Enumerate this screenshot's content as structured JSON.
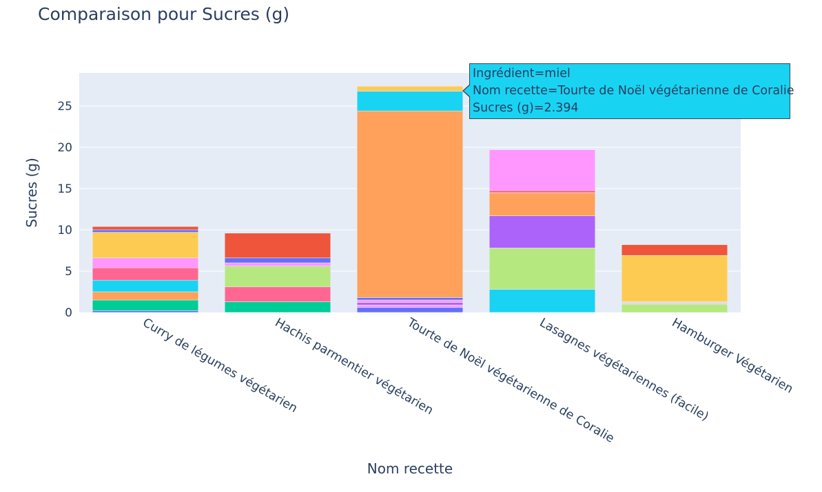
{
  "title": "Comparaison pour Sucres (g)",
  "tooltip": {
    "line1": "Ingrédient=miel",
    "line2": "Nom recette=Tourte de Noël végétarienne de Coralie",
    "line3": "Sucres (g)=2.394",
    "color": "#19d3f3"
  },
  "chart_data": {
    "type": "bar",
    "stacked": true,
    "title": "Comparaison pour Sucres (g)",
    "xlabel": "Nom recette",
    "ylabel": "Sucres (g)",
    "ylim": [
      0,
      29
    ],
    "yticks": [
      0,
      5,
      10,
      15,
      20,
      25
    ],
    "grid": true,
    "categories": [
      "Curry de légumes végétarien",
      "Hachis parmentier végétarien",
      "Tourte de Noël végétarienne de Coralie",
      "Lasagnes végétariennes (facile)",
      "Hamburger Végétarien"
    ],
    "bars": [
      [
        {
          "value": 0.2,
          "color": "#636efa"
        },
        {
          "value": 1.3,
          "color": "#00cc96"
        },
        {
          "value": 1.0,
          "color": "#ffa15a"
        },
        {
          "value": 1.4,
          "color": "#19d3f3"
        },
        {
          "value": 1.5,
          "color": "#ff6692"
        },
        {
          "value": 1.2,
          "color": "#ff97ff"
        },
        {
          "value": 3.1,
          "color": "#fecb52"
        },
        {
          "value": 0.3,
          "color": "#636efa"
        },
        {
          "value": 0.4,
          "color": "#ef553b"
        }
      ],
      [
        {
          "value": 1.3,
          "color": "#00cc96"
        },
        {
          "value": 1.8,
          "color": "#ff6692"
        },
        {
          "value": 2.5,
          "color": "#b6e880"
        },
        {
          "value": 0.4,
          "color": "#ff97ff"
        },
        {
          "value": 0.6,
          "color": "#636efa"
        },
        {
          "value": 3.0,
          "color": "#ef553b"
        }
      ],
      [
        {
          "value": 0.6,
          "color": "#636efa"
        },
        {
          "value": 0.3,
          "color": "#ff97ff"
        },
        {
          "value": 0.3,
          "color": "#ab63fa"
        },
        {
          "value": 0.3,
          "color": "#ff97ff"
        },
        {
          "value": 0.3,
          "color": "#636efa"
        },
        {
          "value": 22.6,
          "color": "#ffa15a"
        },
        {
          "value": 2.394,
          "color": "#19d3f3"
        },
        {
          "value": 0.6,
          "color": "#fecb52"
        }
      ],
      [
        {
          "value": 2.8,
          "color": "#19d3f3"
        },
        {
          "value": 5.0,
          "color": "#b6e880"
        },
        {
          "value": 3.9,
          "color": "#ab63fa"
        },
        {
          "value": 2.8,
          "color": "#ffa15a"
        },
        {
          "value": 0.3,
          "color": "#ff6692"
        },
        {
          "value": 4.9,
          "color": "#ff97ff"
        }
      ],
      [
        {
          "value": 1.0,
          "color": "#b6e880"
        },
        {
          "value": 0.3,
          "color": "#dddddd"
        },
        {
          "value": 5.6,
          "color": "#fecb52"
        },
        {
          "value": 1.3,
          "color": "#ef553b"
        }
      ]
    ]
  }
}
